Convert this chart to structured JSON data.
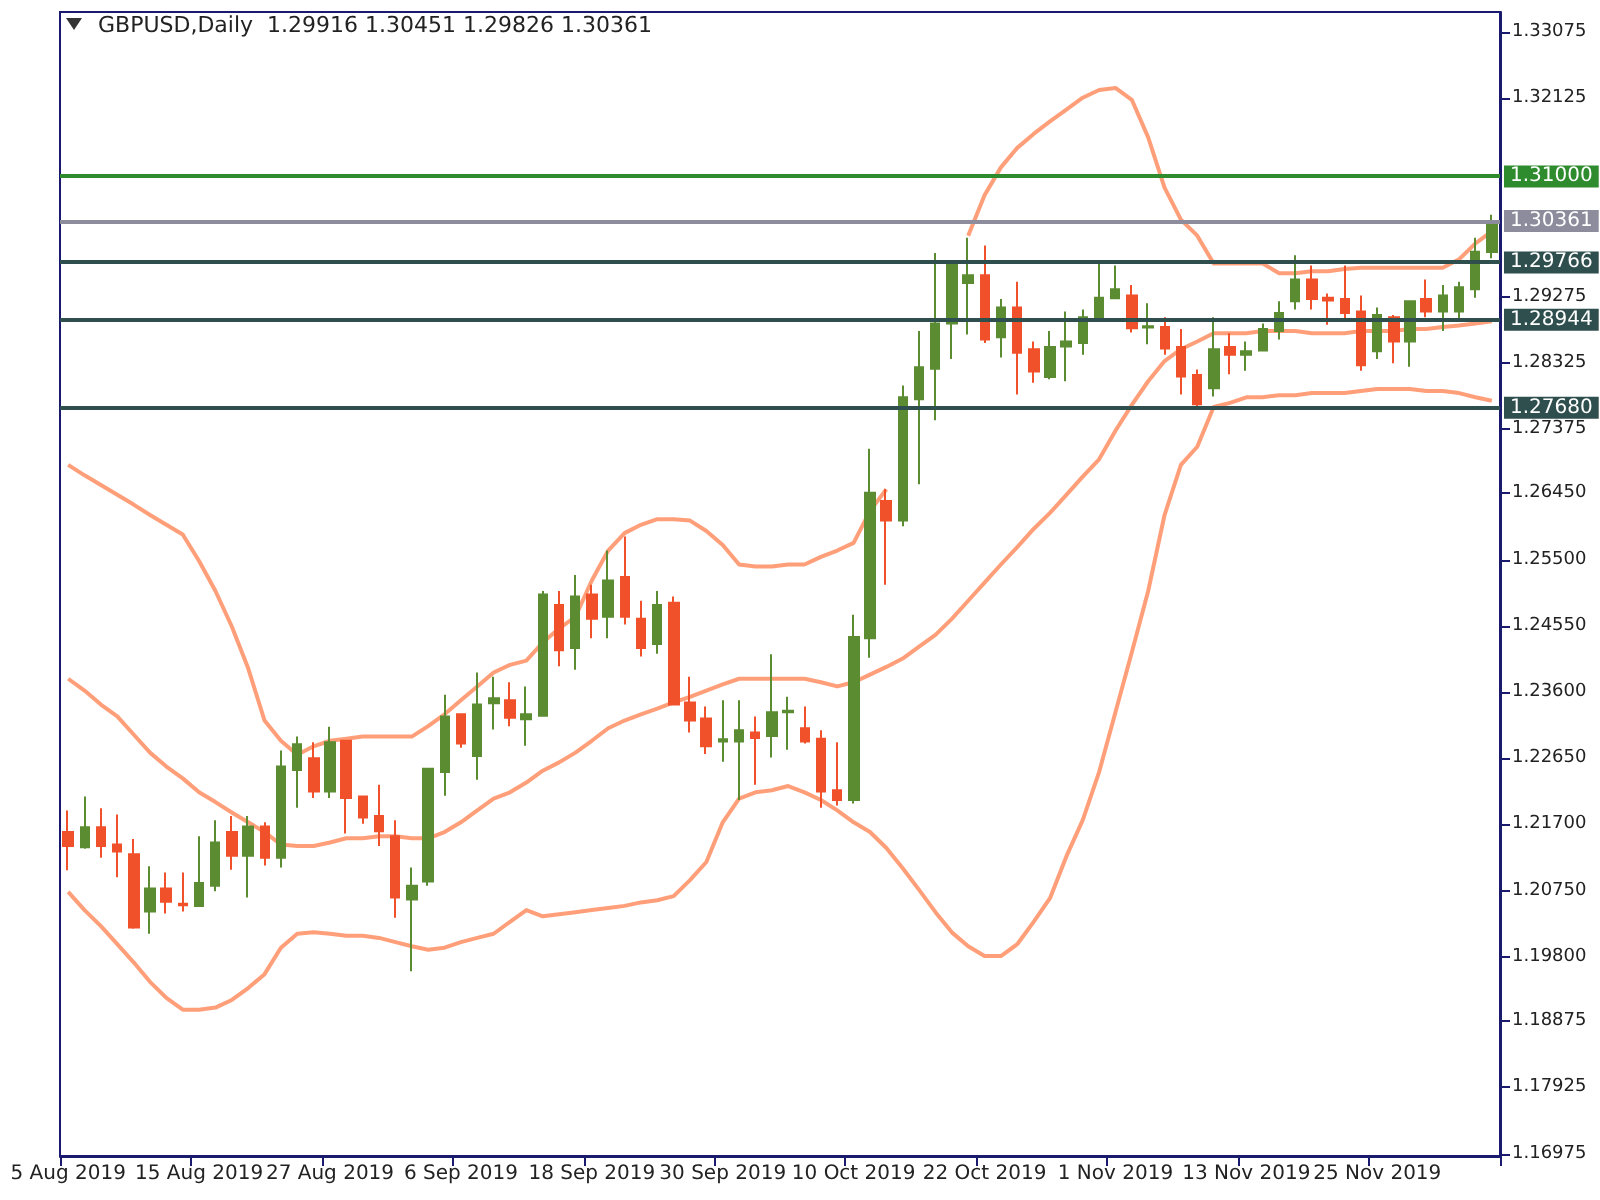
{
  "chart_data": {
    "type": "candlestick",
    "title": "GBPUSD,Daily  1.29916 1.30451 1.29826 1.30361",
    "categories": [
      "5 Aug 2019",
      null,
      null,
      null,
      null,
      null,
      null,
      null,
      "15 Aug 2019",
      null,
      null,
      null,
      null,
      null,
      null,
      null,
      "27 Aug 2019",
      null,
      null,
      null,
      null,
      null,
      null,
      null,
      "6 Sep 2019",
      null,
      null,
      null,
      null,
      null,
      null,
      null,
      "18 Sep 2019",
      null,
      null,
      null,
      null,
      null,
      null,
      null,
      "30 Sep 2019",
      null,
      null,
      null,
      null,
      null,
      null,
      null,
      "10 Oct 2019",
      null,
      null,
      null,
      null,
      null,
      null,
      null,
      "22 Oct 2019",
      null,
      null,
      null,
      null,
      null,
      null,
      null,
      "1 Nov 2019",
      null,
      null,
      null,
      null,
      null,
      null,
      null,
      "13 Nov 2019",
      null,
      null,
      null,
      null,
      null,
      null,
      null,
      "25 Nov 2019",
      null,
      null,
      null,
      null,
      null,
      null,
      null
    ],
    "ylim": [
      1.1694,
      1.3336
    ],
    "yticks": [
      1.33075,
      1.32125,
      1.29275,
      1.28325,
      1.27375,
      {
        "value": 1.2645,
        "label": "1.26450"
      },
      {
        "value": 1.255,
        "label": "1.25500"
      },
      {
        "value": 1.2455,
        "label": "1.24550"
      },
      {
        "value": 1.236,
        "label": "1.23600"
      },
      {
        "value": 1.2265,
        "label": "1.22650"
      },
      {
        "value": 1.217,
        "label": "1.21700"
      },
      {
        "value": 1.2075,
        "label": "1.20750"
      },
      {
        "value": 1.198,
        "label": "1.19800"
      },
      1.18875,
      1.17925,
      1.16975
    ],
    "marker": "none",
    "series": [
      {
        "type": "line",
        "color": "#ff9f7a",
        "values": [
          1.2686,
          1.2671,
          1.2657,
          1.2643,
          1.2629,
          1.2614,
          1.26,
          1.2586,
          1.2548,
          1.2505,
          1.2454,
          1.2394,
          1.2319,
          1.229,
          1.227,
          1.2282,
          1.229,
          1.2293,
          1.2296,
          1.2296,
          1.2296,
          1.2296,
          1.2311,
          1.2328,
          1.2348,
          1.2368,
          1.2388,
          1.2399,
          1.2405,
          1.2431,
          1.2451,
          1.2468,
          1.252,
          1.2563,
          1.2588,
          1.26,
          1.2608,
          1.2608,
          1.2606,
          1.2591,
          1.2571,
          1.2543,
          1.254,
          1.254,
          1.2543,
          1.2543,
          1.2554,
          1.2563,
          1.2574,
          1.262,
          1.2651,
          null,
          null,
          null,
          null,
          1.3015,
          1.3073,
          1.3113,
          1.3141,
          1.3161,
          1.3179,
          1.3196,
          1.3213,
          1.3224,
          1.3227,
          1.321,
          1.3156,
          1.3084,
          1.3038,
          1.3015,
          1.2975,
          1.2975,
          1.2975,
          1.2975,
          1.2961,
          1.2961,
          1.2964,
          1.2964,
          1.2967,
          1.2969,
          1.2969,
          1.2969,
          1.2969,
          1.2969,
          1.2969,
          1.2981,
          1.3004,
          1.3021
        ]
      },
      {
        "type": "line",
        "color": "#ff9f7a",
        "values": [
          1.2379,
          1.2362,
          1.2342,
          1.2325,
          1.2299,
          1.2273,
          1.2253,
          1.2236,
          1.2216,
          1.2202,
          1.2187,
          1.2173,
          1.2159,
          1.2141,
          1.2139,
          1.2139,
          1.2144,
          1.215,
          1.215,
          1.2153,
          1.2153,
          1.215,
          1.215,
          1.2159,
          1.2173,
          1.219,
          1.2207,
          1.2216,
          1.223,
          1.2247,
          1.2259,
          1.2273,
          1.229,
          1.2308,
          1.2319,
          1.2328,
          1.2336,
          1.2345,
          1.2353,
          1.2362,
          1.2371,
          1.2379,
          1.2379,
          1.2379,
          1.2379,
          1.2379,
          1.2374,
          1.2368,
          1.2374,
          1.2385,
          1.2396,
          1.2408,
          1.2425,
          1.2442,
          1.2465,
          1.2491,
          1.2517,
          1.2543,
          1.2568,
          1.2594,
          1.2617,
          1.2643,
          1.2669,
          1.2694,
          1.2735,
          1.2772,
          1.2806,
          1.2835,
          1.2852,
          1.2863,
          1.2875,
          1.2875,
          1.2875,
          1.2878,
          1.2878,
          1.2878,
          1.2875,
          1.2875,
          1.2875,
          1.2878,
          1.2878,
          1.2878,
          1.2881,
          1.2881,
          1.2884,
          1.2886,
          1.2889,
          1.2892
        ]
      },
      {
        "type": "line",
        "color": "#ff9f7a",
        "values": [
          1.2073,
          1.2047,
          1.2024,
          1.1998,
          1.1972,
          1.1944,
          1.1921,
          1.1904,
          1.1904,
          1.1907,
          1.1918,
          1.1935,
          1.1955,
          1.1993,
          1.2013,
          1.2015,
          1.2013,
          1.201,
          1.201,
          1.2007,
          1.2001,
          1.1995,
          1.199,
          1.1993,
          1.2001,
          1.2007,
          1.2013,
          1.203,
          1.2047,
          1.2038,
          1.2041,
          1.2044,
          1.2047,
          1.205,
          1.2053,
          1.2058,
          1.2061,
          1.2067,
          1.209,
          1.2116,
          1.2173,
          1.2207,
          1.2216,
          1.2219,
          1.2225,
          1.2216,
          1.2205,
          1.219,
          1.2173,
          1.2159,
          1.2136,
          1.2107,
          1.2076,
          1.2044,
          1.2015,
          1.1995,
          1.1981,
          1.1981,
          1.1998,
          1.203,
          1.2064,
          1.2124,
          1.2176,
          1.2245,
          1.2331,
          1.2417,
          1.2505,
          1.2614,
          1.2686,
          1.2712,
          1.2769,
          1.2775,
          1.2783,
          1.2783,
          1.2786,
          1.2786,
          1.2789,
          1.2789,
          1.2789,
          1.2792,
          1.2795,
          1.2795,
          1.2795,
          1.2792,
          1.2792,
          1.2789,
          1.2783,
          1.2778
        ]
      },
      {
        "ohlc": [
          [
            1.2159,
            1.219,
            1.2104,
            1.2139
          ],
          [
            1.2137,
            1.221,
            1.2135,
            1.2166
          ],
          [
            1.2166,
            1.2193,
            1.2122,
            1.2139
          ],
          [
            1.2141,
            1.2184,
            1.2094,
            1.2131
          ],
          [
            1.2127,
            1.2149,
            1.202,
            1.2022
          ],
          [
            1.2045,
            1.211,
            1.2013,
            1.2078
          ],
          [
            1.2078,
            1.2101,
            1.2042,
            1.2059
          ],
          [
            1.2056,
            1.2101,
            1.2045,
            1.2054
          ],
          [
            1.2053,
            1.2153,
            1.2052,
            1.2086
          ],
          [
            1.2082,
            1.2176,
            1.2074,
            1.2144
          ],
          [
            1.2159,
            1.2182,
            1.2105,
            1.2125
          ],
          [
            1.2125,
            1.2182,
            1.2065,
            1.2167
          ],
          [
            1.2167,
            1.2173,
            1.2111,
            1.2122
          ],
          [
            1.2122,
            1.2276,
            1.2108,
            1.2253
          ],
          [
            1.2248,
            1.2296,
            1.2194,
            1.2285
          ],
          [
            1.2265,
            1.2288,
            1.2208,
            1.2217
          ],
          [
            1.2217,
            1.231,
            1.2208,
            1.2288
          ],
          [
            1.229,
            1.2291,
            1.2157,
            1.2208
          ],
          [
            1.221,
            1.2211,
            1.2171,
            1.218
          ],
          [
            1.2182,
            1.2227,
            1.2139,
            1.216
          ],
          [
            1.2153,
            1.2176,
            1.2036,
            1.2065
          ],
          [
            1.2062,
            1.2108,
            1.1959,
            1.2082
          ],
          [
            1.2088,
            1.2251,
            1.2082,
            1.225
          ],
          [
            1.2245,
            1.2356,
            1.2211,
            1.2325
          ],
          [
            1.2328,
            1.2329,
            1.228,
            1.2286
          ],
          [
            1.2268,
            1.2388,
            1.2234,
            1.2342
          ],
          [
            1.2344,
            1.2382,
            1.2306,
            1.2351
          ],
          [
            1.2348,
            1.2374,
            1.2311,
            1.2323
          ],
          [
            1.2321,
            1.2368,
            1.2283,
            1.2328
          ],
          [
            1.2326,
            1.2505,
            1.2325,
            1.25
          ],
          [
            1.2485,
            1.2505,
            1.2397,
            1.242
          ],
          [
            1.2423,
            1.2528,
            1.2392,
            1.2497
          ],
          [
            1.25,
            1.2514,
            1.2437,
            1.2465
          ],
          [
            1.2468,
            1.2563,
            1.2437,
            1.252
          ],
          [
            1.2525,
            1.2583,
            1.2457,
            1.2468
          ],
          [
            1.2465,
            1.2491,
            1.2411,
            1.2423
          ],
          [
            1.2429,
            1.2505,
            1.2415,
            1.2485
          ],
          [
            1.2488,
            1.2497,
            1.2341,
            1.2342
          ],
          [
            1.2345,
            1.2382,
            1.2302,
            1.2319
          ],
          [
            1.2322,
            1.2339,
            1.2271,
            1.2282
          ],
          [
            1.2289,
            1.2348,
            1.226,
            1.2292
          ],
          [
            1.2289,
            1.2348,
            1.2205,
            1.2305
          ],
          [
            1.2302,
            1.2325,
            1.2227,
            1.2294
          ],
          [
            1.2297,
            1.2414,
            1.2266,
            1.2331
          ],
          [
            1.2331,
            1.2353,
            1.2277,
            1.2333
          ],
          [
            1.2308,
            1.2339,
            1.2286,
            1.2289
          ],
          [
            1.2293,
            1.2305,
            1.2194,
            1.2217
          ],
          [
            1.2219,
            1.2288,
            1.2197,
            1.2205
          ],
          [
            1.2205,
            1.2471,
            1.22,
            1.2439
          ],
          [
            1.2437,
            1.2709,
            1.2409,
            1.2646
          ],
          [
            1.2634,
            1.2651,
            1.2514,
            1.2606
          ],
          [
            1.2606,
            1.28,
            1.2598,
            1.2783
          ],
          [
            1.278,
            1.2878,
            1.2658,
            1.2826
          ],
          [
            1.2824,
            1.299,
            1.275,
            1.2889
          ],
          [
            1.2889,
            1.298,
            1.2838,
            1.2978
          ],
          [
            1.2947,
            1.3012,
            1.2873,
            1.2958
          ],
          [
            1.2958,
            1.3001,
            1.2861,
            1.2866
          ],
          [
            1.2869,
            1.2924,
            1.284,
            1.2912
          ],
          [
            1.2912,
            1.2949,
            1.2787,
            1.2847
          ],
          [
            1.2852,
            1.2863,
            1.2804,
            1.282
          ],
          [
            1.2812,
            1.2878,
            1.2809,
            1.2855
          ],
          [
            1.2856,
            1.2906,
            1.2806,
            1.2863
          ],
          [
            1.2861,
            1.2909,
            1.2844,
            1.2898
          ],
          [
            1.2895,
            1.2975,
            1.2894,
            1.2926
          ],
          [
            1.2925,
            1.2972,
            1.2924,
            1.2938
          ],
          [
            1.2929,
            1.2944,
            1.2876,
            1.2882
          ],
          [
            1.2883,
            1.2918,
            1.2859,
            1.2885
          ],
          [
            1.2884,
            1.2898,
            1.2844,
            1.2853
          ],
          [
            1.2855,
            1.2881,
            1.2787,
            1.2813
          ],
          [
            1.2815,
            1.2823,
            1.2766,
            1.2773
          ],
          [
            1.2796,
            1.2898,
            1.2784,
            1.2852
          ],
          [
            1.2855,
            1.2875,
            1.2816,
            1.2844
          ],
          [
            1.2844,
            1.2863,
            1.2821,
            1.2849
          ],
          [
            1.285,
            1.2889,
            1.2849,
            1.2881
          ],
          [
            1.2878,
            1.2921,
            1.2866,
            1.2904
          ],
          [
            1.2921,
            1.2987,
            1.2909,
            1.2952
          ],
          [
            1.2952,
            1.2972,
            1.2909,
            1.2924
          ],
          [
            1.2926,
            1.2932,
            1.2887,
            1.2922
          ],
          [
            1.2924,
            1.2972,
            1.2892,
            1.2904
          ],
          [
            1.2906,
            1.2929,
            1.2821,
            1.2829
          ],
          [
            1.2849,
            1.2912,
            1.2838,
            1.2901
          ],
          [
            1.2898,
            1.2901,
            1.2832,
            1.2863
          ],
          [
            1.2863,
            1.2921,
            1.2827,
            1.2921
          ],
          [
            1.2924,
            1.2952,
            1.2898,
            1.2906
          ],
          [
            1.2906,
            1.2944,
            1.2878,
            1.2929
          ],
          [
            1.2906,
            1.2949,
            1.2895,
            1.2941
          ],
          [
            1.2938,
            1.3012,
            1.2926,
            1.2992
          ],
          [
            1.29916,
            1.30451,
            1.29826,
            1.30361
          ]
        ],
        "colors": [
          "#f0512b",
          "#5b8c32",
          "#f0512b",
          "#f0512b",
          "#f0512b",
          "#5b8c32",
          "#f0512b",
          "#f0512b",
          "#5b8c32",
          "#5b8c32",
          "#f0512b",
          "#5b8c32",
          "#f0512b",
          "#5b8c32",
          "#5b8c32",
          "#f0512b",
          "#5b8c32",
          "#f0512b",
          "#f0512b",
          "#f0512b",
          "#f0512b",
          "#5b8c32",
          "#5b8c32",
          "#5b8c32",
          "#f0512b",
          "#5b8c32",
          "#5b8c32",
          "#f0512b",
          "#5b8c32",
          "#5b8c32",
          "#f0512b",
          "#5b8c32",
          "#f0512b",
          "#5b8c32",
          "#f0512b",
          "#f0512b",
          "#5b8c32",
          "#f0512b",
          "#f0512b",
          "#f0512b",
          "#5b8c32",
          "#5b8c32",
          "#f0512b",
          "#5b8c32",
          "#5b8c32",
          "#f0512b",
          "#f0512b",
          "#f0512b",
          "#5b8c32",
          "#5b8c32",
          "#f0512b",
          "#5b8c32",
          "#5b8c32",
          "#5b8c32",
          "#5b8c32",
          "#5b8c32",
          "#f0512b",
          "#5b8c32",
          "#f0512b",
          "#f0512b",
          "#5b8c32",
          "#5b8c32",
          "#5b8c32",
          "#5b8c32",
          "#5b8c32",
          "#f0512b",
          "#5b8c32",
          "#f0512b",
          "#f0512b",
          "#f0512b",
          "#5b8c32",
          "#f0512b",
          "#5b8c32",
          "#5b8c32",
          "#5b8c32",
          "#5b8c32",
          "#f0512b",
          "#f0512b",
          "#f0512b",
          "#f0512b",
          "#5b8c32",
          "#f0512b",
          "#5b8c32",
          "#f0512b",
          "#5b8c32",
          "#5b8c32",
          "#5b8c32",
          "#5b8c32"
        ]
      }
    ],
    "ref_lines": [
      {
        "axis": "y",
        "value": 1.31,
        "label": "1.31000",
        "color": "#2e8b2e"
      },
      {
        "axis": "y",
        "value": 1.30361,
        "label": "1.30361",
        "color": "#8c8c9c"
      },
      {
        "axis": "y",
        "value": 1.29766,
        "label": "1.29766",
        "color": "#2f4f4f"
      },
      {
        "axis": "y",
        "value": 1.28944,
        "label": "1.28944",
        "color": "#2f4f4f"
      },
      {
        "axis": "y",
        "value": 1.2768,
        "label": "1.27680",
        "color": "#2f4f4f"
      }
    ]
  }
}
